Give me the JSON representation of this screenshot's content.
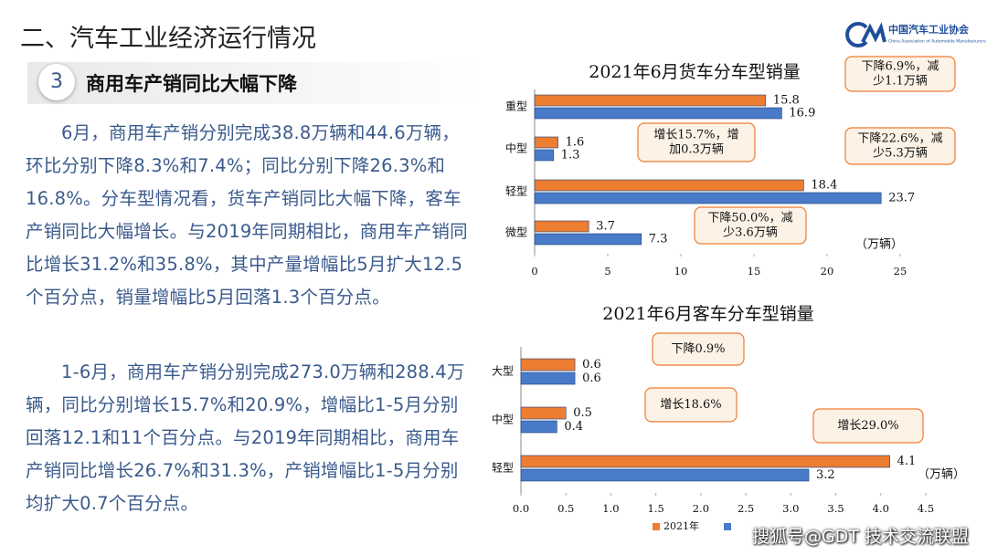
{
  "header": {
    "title": "二、汽车工业经济运行情况",
    "logo_cn": "中国汽车工业协会",
    "logo_en": "China Association of Automobile Manufacturers"
  },
  "section": {
    "number": "3",
    "title": "商用车产销同比大幅下降"
  },
  "paragraphs": [
    "6月，商用车产销分别完成38.8万辆和44.6万辆，环比分别下降8.3%和7.4%；同比分别下降26.3%和16.8%。分车型情况看，货车产销同比大幅下降，客车产销同比大幅增长。与2019年同期相比，商用车产销同比增长31.2%和35.8%，其中产量增幅比5月扩大12.5个百分点，销量增幅比5月回落1.3个百分点。",
    "1-6月，商用车产销分别完成273.0万辆和288.4万辆，同比分别增长15.7%和20.9%，增幅比1-5月分别回落12.1和11个百分点。与2019年同期相比，商用车产销同比增长26.7%和31.3%，产销增幅比1-5月分别均扩大0.7个百分点。"
  ],
  "chart_data": [
    {
      "type": "hbar",
      "title": "2021年6月货车分车型销量",
      "unit": "（万辆）",
      "categories": [
        "重型",
        "中型",
        "轻型",
        "微型"
      ],
      "series": [
        {
          "color": "#ed7d31",
          "values": [
            15.8,
            1.6,
            18.4,
            3.7
          ]
        },
        {
          "color": "#4a7bc8",
          "values": [
            16.9,
            1.3,
            23.7,
            7.3
          ]
        }
      ],
      "xlim": [
        0,
        25
      ],
      "xticks": [
        0,
        5,
        10,
        15,
        20,
        25
      ],
      "annotations": [
        {
          "lines": [
            "下降6.9%，减",
            "少1.1万辆"
          ]
        },
        {
          "lines": [
            "增长15.7%，增",
            "加0.3万辆"
          ]
        },
        {
          "lines": [
            "下降22.6%，减",
            "少5.3万辆"
          ]
        },
        {
          "lines": [
            "下降50.0%，减",
            "少3.6万辆"
          ]
        }
      ]
    },
    {
      "type": "hbar",
      "title": "2021年6月客车分车型销量",
      "unit": "（万辆）",
      "categories": [
        "大型",
        "中型",
        "轻型"
      ],
      "series": [
        {
          "name": "2021年",
          "color": "#ed7d31",
          "values": [
            0.6,
            0.5,
            4.1
          ]
        },
        {
          "color": "#4a7bc8",
          "values": [
            0.6,
            0.4,
            3.2
          ]
        }
      ],
      "xlim": [
        0,
        4.5
      ],
      "xticks": [
        {
          "value": 0,
          "label": "0.0"
        },
        0.5,
        {
          "value": 1,
          "label": "1.0"
        },
        1.5,
        {
          "value": 2,
          "label": "2.0"
        },
        2.5,
        {
          "value": 3,
          "label": "3.0"
        },
        3.5,
        {
          "value": 4,
          "label": "4.0"
        },
        4.5
      ],
      "annotations": [
        {
          "lines": [
            "下降0.9%"
          ]
        },
        {
          "lines": [
            "增长18.6%"
          ]
        },
        {
          "lines": [
            "增长29.0%"
          ]
        }
      ]
    }
  ],
  "watermark": "搜狐号@GDT 技术交流联盟"
}
